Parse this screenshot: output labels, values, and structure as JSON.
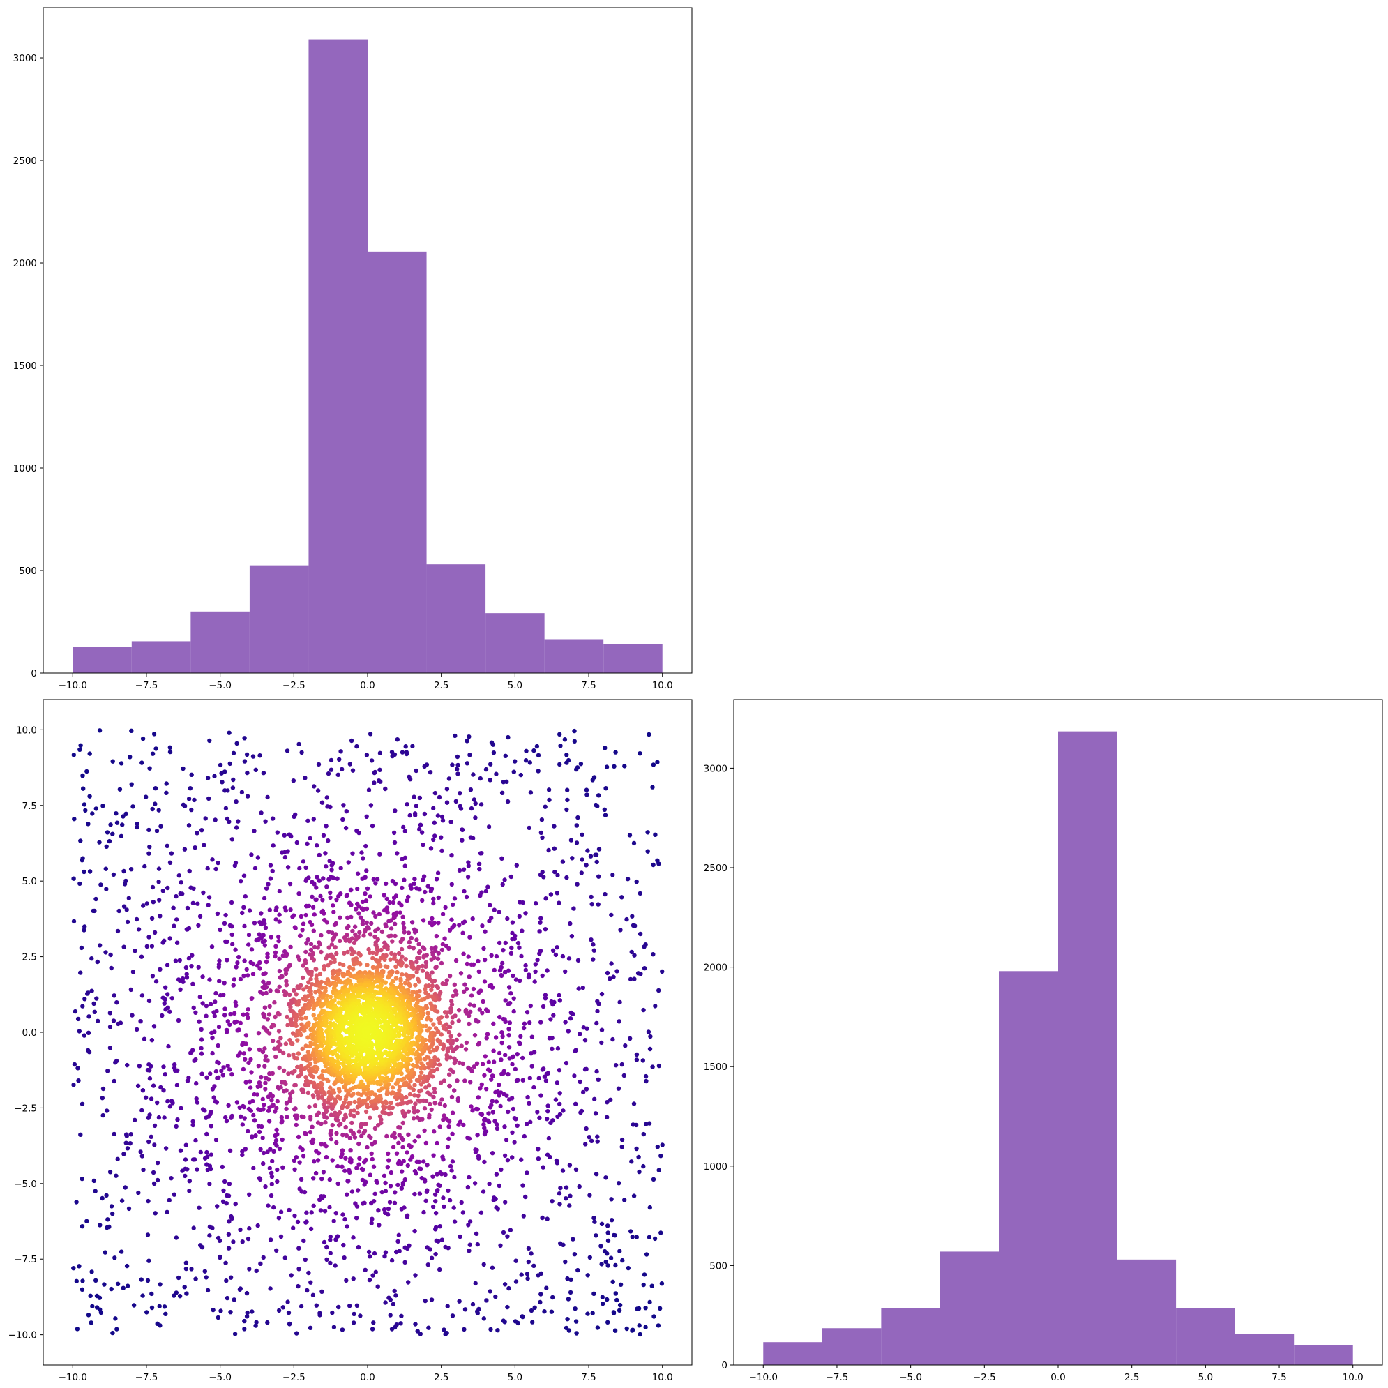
{
  "colors": {
    "bar": "#9467bd",
    "scatter_low": "#0d0887",
    "scatter_high": "#f0f921",
    "axes": "#000000"
  },
  "chart_data": [
    {
      "id": "top-left",
      "type": "bar",
      "title": "",
      "xlabel": "",
      "ylabel": "",
      "bin_edges": [
        -10,
        -8,
        -6,
        -4,
        -2,
        0,
        2,
        4,
        6,
        8,
        10
      ],
      "values": [
        128,
        155,
        300,
        525,
        3090,
        2055,
        530,
        292,
        165,
        140
      ],
      "xlim": [
        -11,
        11
      ],
      "ylim": [
        0,
        3245
      ],
      "xticks": [
        -10.0,
        -7.5,
        -5.0,
        -2.5,
        0.0,
        2.5,
        5.0,
        7.5,
        10.0
      ],
      "xtick_labels": [
        "−10.0",
        "−7.5",
        "−5.0",
        "−2.5",
        "0.0",
        "2.5",
        "5.0",
        "7.5",
        "10.0"
      ],
      "yticks": [
        0,
        500,
        1000,
        1500,
        2000,
        2500,
        3000
      ],
      "ytick_labels": [
        "0",
        "500",
        "1000",
        "1500",
        "2000",
        "2500",
        "3000"
      ],
      "grid": false
    },
    {
      "id": "bottom-left",
      "type": "scatter",
      "title": "",
      "xlabel": "",
      "ylabel": "",
      "colormap": "plasma",
      "color_by": "point density",
      "n_points": 5000,
      "distribution": "dense cluster centered at (0, 0) with uniform background over [-10, 10] × [-10, 10]",
      "xlim": [
        -11,
        11
      ],
      "ylim": [
        -11,
        11
      ],
      "xticks": [
        -10.0,
        -7.5,
        -5.0,
        -2.5,
        0.0,
        2.5,
        5.0,
        7.5,
        10.0
      ],
      "xtick_labels": [
        "−10.0",
        "−7.5",
        "−5.0",
        "−2.5",
        "0.0",
        "2.5",
        "5.0",
        "7.5",
        "10.0"
      ],
      "yticks": [
        -10.0,
        -7.5,
        -5.0,
        -2.5,
        0.0,
        2.5,
        5.0,
        7.5,
        10.0
      ],
      "ytick_labels": [
        "−10.0",
        "−7.5",
        "−5.0",
        "−2.5",
        "0.0",
        "2.5",
        "5.0",
        "7.5",
        "10.0"
      ],
      "grid": false
    },
    {
      "id": "bottom-right",
      "type": "bar",
      "title": "",
      "xlabel": "",
      "ylabel": "",
      "bin_edges": [
        -10,
        -8,
        -6,
        -4,
        -2,
        0,
        2,
        4,
        6,
        8,
        10
      ],
      "values": [
        115,
        185,
        285,
        570,
        1980,
        3185,
        530,
        285,
        155,
        100
      ],
      "xlim": [
        -11,
        11
      ],
      "ylim": [
        0,
        3345
      ],
      "xticks": [
        -10.0,
        -7.5,
        -5.0,
        -2.5,
        0.0,
        2.5,
        5.0,
        7.5,
        10.0
      ],
      "xtick_labels": [
        "−10.0",
        "−7.5",
        "−5.0",
        "−2.5",
        "0.0",
        "2.5",
        "5.0",
        "7.5",
        "10.0"
      ],
      "yticks": [
        0,
        500,
        1000,
        1500,
        2000,
        2500,
        3000
      ],
      "ytick_labels": [
        "0",
        "500",
        "1000",
        "1500",
        "2000",
        "2500",
        "3000"
      ],
      "grid": false
    }
  ]
}
